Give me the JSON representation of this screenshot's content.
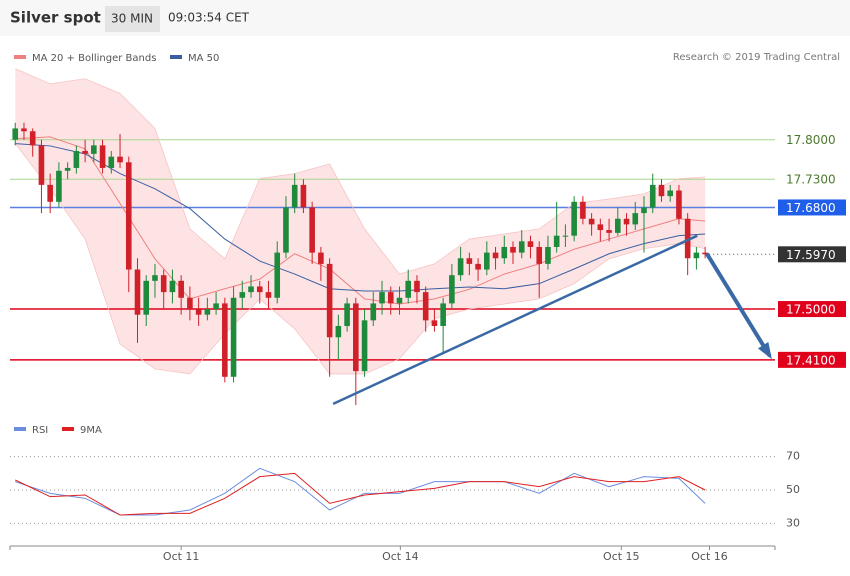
{
  "header": {
    "title": "Silver spot",
    "interval": "30 MIN",
    "time": "09:03:54 CET"
  },
  "chart_data": [
    {
      "type": "candlestick",
      "credit": "Research © 2019 Trading Central",
      "up_color": "#1e8a3c",
      "down_color": "#d0202a",
      "xlim": [
        -0.6,
        87
      ],
      "xticks": [
        {
          "value": 19,
          "label": "Oct 11"
        },
        {
          "value": 44.1,
          "label": "Oct 14"
        },
        {
          "value": 69.4,
          "label": "Oct 15"
        },
        {
          "value": 79.5,
          "label": "Oct 16"
        }
      ],
      "ylim": [
        17.33,
        17.92
      ],
      "candles": [
        [
          17.8,
          17.83,
          17.79,
          17.82
        ],
        [
          17.82,
          17.83,
          17.8,
          17.815
        ],
        [
          17.815,
          17.82,
          17.77,
          17.79
        ],
        [
          17.79,
          17.8,
          17.67,
          17.72
        ],
        [
          17.72,
          17.74,
          17.67,
          17.69
        ],
        [
          17.69,
          17.76,
          17.68,
          17.745
        ],
        [
          17.745,
          17.76,
          17.73,
          17.75
        ],
        [
          17.75,
          17.79,
          17.74,
          17.78
        ],
        [
          17.78,
          17.8,
          17.76,
          17.775
        ],
        [
          17.775,
          17.8,
          17.76,
          17.79
        ],
        [
          17.79,
          17.8,
          17.74,
          17.75
        ],
        [
          17.75,
          17.78,
          17.74,
          17.77
        ],
        [
          17.77,
          17.81,
          17.75,
          17.76
        ],
        [
          17.76,
          17.77,
          17.53,
          17.57
        ],
        [
          17.57,
          17.59,
          17.44,
          17.49
        ],
        [
          17.49,
          17.56,
          17.47,
          17.55
        ],
        [
          17.55,
          17.58,
          17.52,
          17.56
        ],
        [
          17.56,
          17.57,
          17.5,
          17.53
        ],
        [
          17.53,
          17.57,
          17.51,
          17.55
        ],
        [
          17.55,
          17.56,
          17.49,
          17.52
        ],
        [
          17.52,
          17.54,
          17.48,
          17.5
        ],
        [
          17.5,
          17.52,
          17.47,
          17.49
        ],
        [
          17.49,
          17.52,
          17.48,
          17.5
        ],
        [
          17.5,
          17.53,
          17.49,
          17.51
        ],
        [
          17.51,
          17.52,
          17.37,
          17.38
        ],
        [
          17.38,
          17.54,
          17.37,
          17.52
        ],
        [
          17.52,
          17.55,
          17.5,
          17.53
        ],
        [
          17.53,
          17.56,
          17.52,
          17.54
        ],
        [
          17.54,
          17.55,
          17.51,
          17.53
        ],
        [
          17.53,
          17.55,
          17.5,
          17.52
        ],
        [
          17.52,
          17.62,
          17.51,
          17.6
        ],
        [
          17.6,
          17.7,
          17.59,
          17.68
        ],
        [
          17.68,
          17.74,
          17.67,
          17.72
        ],
        [
          17.72,
          17.73,
          17.67,
          17.68
        ],
        [
          17.68,
          17.69,
          17.58,
          17.6
        ],
        [
          17.6,
          17.61,
          17.55,
          17.58
        ],
        [
          17.58,
          17.59,
          17.38,
          17.45
        ],
        [
          17.45,
          17.49,
          17.41,
          17.47
        ],
        [
          17.47,
          17.52,
          17.46,
          17.51
        ],
        [
          17.51,
          17.52,
          17.33,
          17.39
        ],
        [
          17.39,
          17.5,
          17.38,
          17.48
        ],
        [
          17.48,
          17.53,
          17.47,
          17.51
        ],
        [
          17.51,
          17.55,
          17.49,
          17.53
        ],
        [
          17.53,
          17.54,
          17.49,
          17.51
        ],
        [
          17.51,
          17.54,
          17.49,
          17.52
        ],
        [
          17.52,
          17.57,
          17.51,
          17.55
        ],
        [
          17.55,
          17.56,
          17.51,
          17.53
        ],
        [
          17.53,
          17.54,
          17.46,
          17.48
        ],
        [
          17.48,
          17.5,
          17.46,
          17.47
        ],
        [
          17.47,
          17.52,
          17.42,
          17.51
        ],
        [
          17.51,
          17.58,
          17.5,
          17.56
        ],
        [
          17.56,
          17.61,
          17.55,
          17.59
        ],
        [
          17.59,
          17.6,
          17.56,
          17.58
        ],
        [
          17.58,
          17.59,
          17.55,
          17.57
        ],
        [
          17.57,
          17.62,
          17.56,
          17.6
        ],
        [
          17.6,
          17.61,
          17.57,
          17.59
        ],
        [
          17.59,
          17.63,
          17.58,
          17.61
        ],
        [
          17.61,
          17.62,
          17.58,
          17.6
        ],
        [
          17.6,
          17.64,
          17.59,
          17.62
        ],
        [
          17.62,
          17.63,
          17.59,
          17.61
        ],
        [
          17.61,
          17.62,
          17.52,
          17.58
        ],
        [
          17.58,
          17.63,
          17.57,
          17.61
        ],
        [
          17.61,
          17.69,
          17.6,
          17.63
        ],
        [
          17.63,
          17.65,
          17.61,
          17.63
        ],
        [
          17.63,
          17.7,
          17.62,
          17.69
        ],
        [
          17.69,
          17.7,
          17.65,
          17.66
        ],
        [
          17.66,
          17.67,
          17.63,
          17.65
        ],
        [
          17.65,
          17.66,
          17.62,
          17.64
        ],
        [
          17.64,
          17.66,
          17.62,
          17.635
        ],
        [
          17.635,
          17.68,
          17.63,
          17.66
        ],
        [
          17.66,
          17.67,
          17.63,
          17.65
        ],
        [
          17.65,
          17.69,
          17.64,
          17.67
        ],
        [
          17.67,
          17.7,
          17.6,
          17.68
        ],
        [
          17.68,
          17.74,
          17.67,
          17.72
        ],
        [
          17.72,
          17.73,
          17.69,
          17.7
        ],
        [
          17.7,
          17.72,
          17.69,
          17.71
        ],
        [
          17.71,
          17.72,
          17.65,
          17.66
        ],
        [
          17.66,
          17.67,
          17.56,
          17.59
        ],
        [
          17.59,
          17.61,
          17.57,
          17.6
        ],
        [
          17.6,
          17.61,
          17.59,
          17.597
        ]
      ],
      "overlays": {
        "x": [
          0,
          4,
          8,
          12,
          16,
          20,
          24,
          28,
          32,
          36,
          40,
          44,
          48,
          52,
          56,
          60,
          64,
          68,
          72,
          76,
          79
        ],
        "series": [
          {
            "name": "MA 20 + Bollinger Bands",
            "color": "#f08080",
            "band_color": "#fde3e3",
            "values": [
              17.802,
              17.805,
              17.784,
              17.687,
              17.589,
              17.518,
              17.536,
              17.553,
              17.598,
              17.571,
              17.518,
              17.509,
              17.518,
              17.535,
              17.562,
              17.58,
              17.606,
              17.624,
              17.642,
              17.66,
              17.656
            ],
            "upper": [
              17.926,
              17.899,
              17.908,
              17.882,
              17.82,
              17.642,
              17.589,
              17.731,
              17.74,
              17.757,
              17.642,
              17.562,
              17.58,
              17.624,
              17.633,
              17.642,
              17.687,
              17.695,
              17.704,
              17.731,
              17.734
            ],
            "lower": [
              17.793,
              17.713,
              17.624,
              17.438,
              17.394,
              17.385,
              17.456,
              17.518,
              17.465,
              17.385,
              17.385,
              17.412,
              17.483,
              17.5,
              17.509,
              17.518,
              17.545,
              17.589,
              17.607,
              17.616,
              17.607
            ]
          },
          {
            "name": "MA 50",
            "color": "#3a5fa0",
            "values": [
              17.793,
              17.789,
              17.775,
              17.74,
              17.713,
              17.678,
              17.624,
              17.585,
              17.562,
              17.536,
              17.532,
              17.532,
              17.536,
              17.539,
              17.536,
              17.545,
              17.571,
              17.598,
              17.616,
              17.63,
              17.633
            ]
          }
        ]
      },
      "levels": [
        {
          "value": 17.8,
          "label": "17.8000",
          "color": "#a9d48e",
          "text_color": "#4d7a2e",
          "boxed": false,
          "dotted": false
        },
        {
          "value": 17.73,
          "label": "17.7300",
          "color": "#a9d48e",
          "text_color": "#4d7a2e",
          "boxed": false,
          "dotted": false
        },
        {
          "value": 17.68,
          "label": "17.6800",
          "color": "#5b7fe0",
          "text_color": "#1e5ee8",
          "boxed": true,
          "dotted": false
        },
        {
          "value": 17.597,
          "label": "17.5970",
          "color": "#555555",
          "text_color": "#333333",
          "boxed": true,
          "dotted": true
        },
        {
          "value": 17.5,
          "label": "17.5000",
          "color": "#e0001b",
          "text_color": "#e0001b",
          "boxed": true,
          "dotted": false
        },
        {
          "value": 17.41,
          "label": "17.4100",
          "color": "#e0001b",
          "text_color": "#e0001b",
          "boxed": true,
          "dotted": false
        }
      ],
      "trendline": {
        "x": [
          36.4,
          78.1
        ],
        "y": [
          17.332,
          17.63
        ],
        "color": "#3a6aa6"
      },
      "arrow": {
        "x": [
          79.2,
          86.4
        ],
        "y": [
          17.598,
          17.417
        ],
        "color": "#3a6aa6"
      }
    },
    {
      "type": "line",
      "xlim": [
        -0.6,
        87
      ],
      "ylim": [
        20,
        77
      ],
      "yticks": [
        30,
        50,
        70
      ],
      "x": [
        0,
        4,
        8,
        12,
        16,
        20,
        24,
        28,
        32,
        36,
        40,
        44,
        48,
        52,
        56,
        60,
        64,
        68,
        72,
        76,
        79
      ],
      "series": [
        {
          "name": "RSI",
          "color": "#6b8de0",
          "values": [
            55,
            48,
            45,
            35,
            35,
            38,
            48,
            63,
            55,
            38,
            48,
            48,
            55,
            55,
            55,
            48,
            60,
            52,
            58,
            57,
            42
          ]
        },
        {
          "name": "9MA",
          "color": "#e02020",
          "values": [
            56,
            46,
            47,
            35,
            36,
            36,
            45,
            58,
            60,
            42,
            47,
            49,
            51,
            55,
            55,
            52,
            58,
            55,
            55,
            58,
            50
          ]
        }
      ]
    }
  ]
}
